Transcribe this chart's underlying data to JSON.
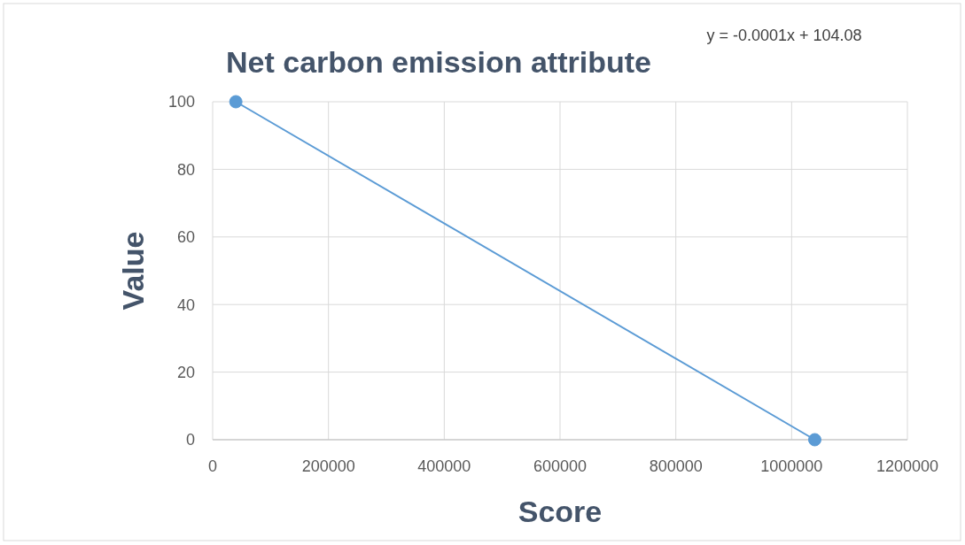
{
  "chart_data": {
    "type": "line",
    "title": "Net carbon emission attribute",
    "xlabel": "Score",
    "ylabel": "Value",
    "annotations": [
      "y = -0.0001x + 104.08"
    ],
    "series": [
      {
        "color": "#5b9bd5",
        "x": [
          40000,
          1040000
        ],
        "values": [
          100,
          0
        ]
      }
    ],
    "xlim": [
      0,
      1200000
    ],
    "xticks": [
      0,
      200000,
      400000,
      600000,
      800000,
      1000000,
      1200000
    ],
    "ylim": [
      0,
      100
    ],
    "yticks": [
      0,
      20,
      40,
      60,
      80,
      100
    ],
    "grid": true,
    "marker": "circle",
    "line_style": "solid"
  }
}
